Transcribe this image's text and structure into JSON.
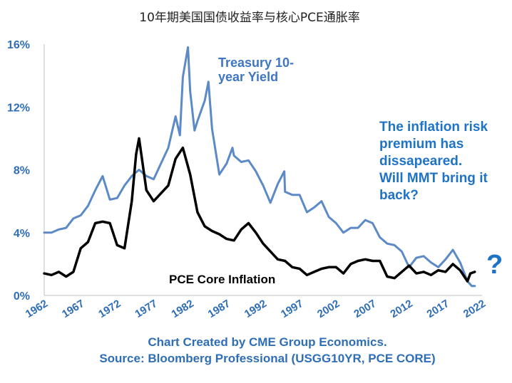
{
  "chart_data": {
    "type": "line",
    "title": "10年期美国国债收益率与核心PCE通胀率",
    "ylim": [
      0,
      16
    ],
    "xlim": [
      1962,
      2022
    ],
    "y_ticks": [
      "0%",
      "4%",
      "8%",
      "12%",
      "16%"
    ],
    "y_tick_values": [
      0,
      4,
      8,
      12,
      16
    ],
    "x_ticks": [
      "1962",
      "1967",
      "1972",
      "1977",
      "1982",
      "1987",
      "1992",
      "1997",
      "2002",
      "2007",
      "2012",
      "2017",
      "2022"
    ],
    "x_tick_values": [
      1962,
      1967,
      1972,
      1977,
      1982,
      1987,
      1992,
      1997,
      2002,
      2007,
      2012,
      2017,
      2022
    ],
    "grid": "none",
    "series": [
      {
        "name": "Treasury 10-year Yield",
        "label_lines": [
          "Treasury 10-",
          "year Yield"
        ],
        "color": "#5b8ac7",
        "points": [
          [
            1962,
            4.0
          ],
          [
            1963,
            4.0
          ],
          [
            1964,
            4.2
          ],
          [
            1965,
            4.3
          ],
          [
            1966,
            4.9
          ],
          [
            1967,
            5.1
          ],
          [
            1968,
            5.7
          ],
          [
            1969,
            6.7
          ],
          [
            1970,
            7.6
          ],
          [
            1971,
            6.1
          ],
          [
            1972,
            6.2
          ],
          [
            1973,
            7.0
          ],
          [
            1974,
            7.6
          ],
          [
            1975,
            8.0
          ],
          [
            1976,
            7.6
          ],
          [
            1977,
            7.4
          ],
          [
            1978,
            8.4
          ],
          [
            1979,
            9.4
          ],
          [
            1980,
            11.4
          ],
          [
            1980.6,
            10.2
          ],
          [
            1981,
            13.9
          ],
          [
            1981.7,
            15.8
          ],
          [
            1982,
            13.0
          ],
          [
            1982.6,
            10.5
          ],
          [
            1983,
            11.1
          ],
          [
            1984,
            12.4
          ],
          [
            1984.5,
            13.6
          ],
          [
            1985,
            10.6
          ],
          [
            1986,
            7.7
          ],
          [
            1987,
            8.4
          ],
          [
            1987.8,
            9.4
          ],
          [
            1988,
            8.9
          ],
          [
            1989,
            8.5
          ],
          [
            1990,
            8.6
          ],
          [
            1991,
            7.9
          ],
          [
            1992,
            7.0
          ],
          [
            1993,
            5.9
          ],
          [
            1994,
            7.1
          ],
          [
            1994.9,
            7.9
          ],
          [
            1995,
            6.6
          ],
          [
            1996,
            6.4
          ],
          [
            1997,
            6.4
          ],
          [
            1998,
            5.3
          ],
          [
            1999,
            5.6
          ],
          [
            2000,
            6.0
          ],
          [
            2001,
            5.0
          ],
          [
            2002,
            4.6
          ],
          [
            2003,
            4.0
          ],
          [
            2004,
            4.3
          ],
          [
            2005,
            4.3
          ],
          [
            2006,
            4.8
          ],
          [
            2007,
            4.6
          ],
          [
            2008,
            3.7
          ],
          [
            2009,
            3.3
          ],
          [
            2010,
            3.2
          ],
          [
            2011,
            2.8
          ],
          [
            2012,
            1.8
          ],
          [
            2013,
            2.4
          ],
          [
            2014,
            2.5
          ],
          [
            2015,
            2.1
          ],
          [
            2016,
            1.8
          ],
          [
            2017,
            2.3
          ],
          [
            2018,
            2.9
          ],
          [
            2019,
            2.1
          ],
          [
            2020,
            0.9
          ],
          [
            2020.6,
            0.6
          ],
          [
            2021,
            0.6
          ]
        ]
      },
      {
        "name": "PCE Core Inflation",
        "color": "#000000",
        "points": [
          [
            1962,
            1.4
          ],
          [
            1963,
            1.3
          ],
          [
            1964,
            1.5
          ],
          [
            1965,
            1.2
          ],
          [
            1966,
            1.5
          ],
          [
            1967,
            3.0
          ],
          [
            1968,
            3.4
          ],
          [
            1969,
            4.6
          ],
          [
            1970,
            4.7
          ],
          [
            1971,
            4.6
          ],
          [
            1972,
            3.2
          ],
          [
            1973,
            3.0
          ],
          [
            1974,
            6.0
          ],
          [
            1974.6,
            9.0
          ],
          [
            1975,
            10.0
          ],
          [
            1976,
            6.7
          ],
          [
            1977,
            6.0
          ],
          [
            1978,
            6.5
          ],
          [
            1979,
            7.0
          ],
          [
            1980,
            8.7
          ],
          [
            1981,
            9.4
          ],
          [
            1982,
            7.7
          ],
          [
            1983,
            5.3
          ],
          [
            1984,
            4.4
          ],
          [
            1985,
            4.1
          ],
          [
            1986,
            3.9
          ],
          [
            1987,
            3.6
          ],
          [
            1988,
            3.5
          ],
          [
            1989,
            4.2
          ],
          [
            1990,
            4.6
          ],
          [
            1991,
            4.0
          ],
          [
            1992,
            3.3
          ],
          [
            1993,
            2.8
          ],
          [
            1994,
            2.3
          ],
          [
            1995,
            2.2
          ],
          [
            1996,
            1.8
          ],
          [
            1997,
            1.7
          ],
          [
            1998,
            1.3
          ],
          [
            1999,
            1.5
          ],
          [
            2000,
            1.7
          ],
          [
            2001,
            1.8
          ],
          [
            2002,
            1.8
          ],
          [
            2003,
            1.4
          ],
          [
            2004,
            2.0
          ],
          [
            2005,
            2.2
          ],
          [
            2006,
            2.3
          ],
          [
            2007,
            2.2
          ],
          [
            2008,
            2.2
          ],
          [
            2009,
            1.2
          ],
          [
            2010,
            1.1
          ],
          [
            2011,
            1.5
          ],
          [
            2012,
            1.9
          ],
          [
            2013,
            1.4
          ],
          [
            2014,
            1.5
          ],
          [
            2015,
            1.3
          ],
          [
            2016,
            1.6
          ],
          [
            2017,
            1.5
          ],
          [
            2018,
            2.0
          ],
          [
            2019,
            1.6
          ],
          [
            2020,
            0.9
          ],
          [
            2020.4,
            1.4
          ],
          [
            2021,
            1.5
          ]
        ]
      }
    ],
    "annotations": [
      {
        "name": "inflation-risk-annotation",
        "lines": [
          "The inflation risk",
          "premium has",
          "dissapeared.",
          "Will MMT bring it",
          "back?"
        ]
      },
      {
        "name": "question-mark",
        "text": "?"
      }
    ],
    "credits": [
      "Chart Created by CME Group Economics.",
      "Source: Bloomberg Professional (USGG10YR, PCE CORE)"
    ]
  }
}
